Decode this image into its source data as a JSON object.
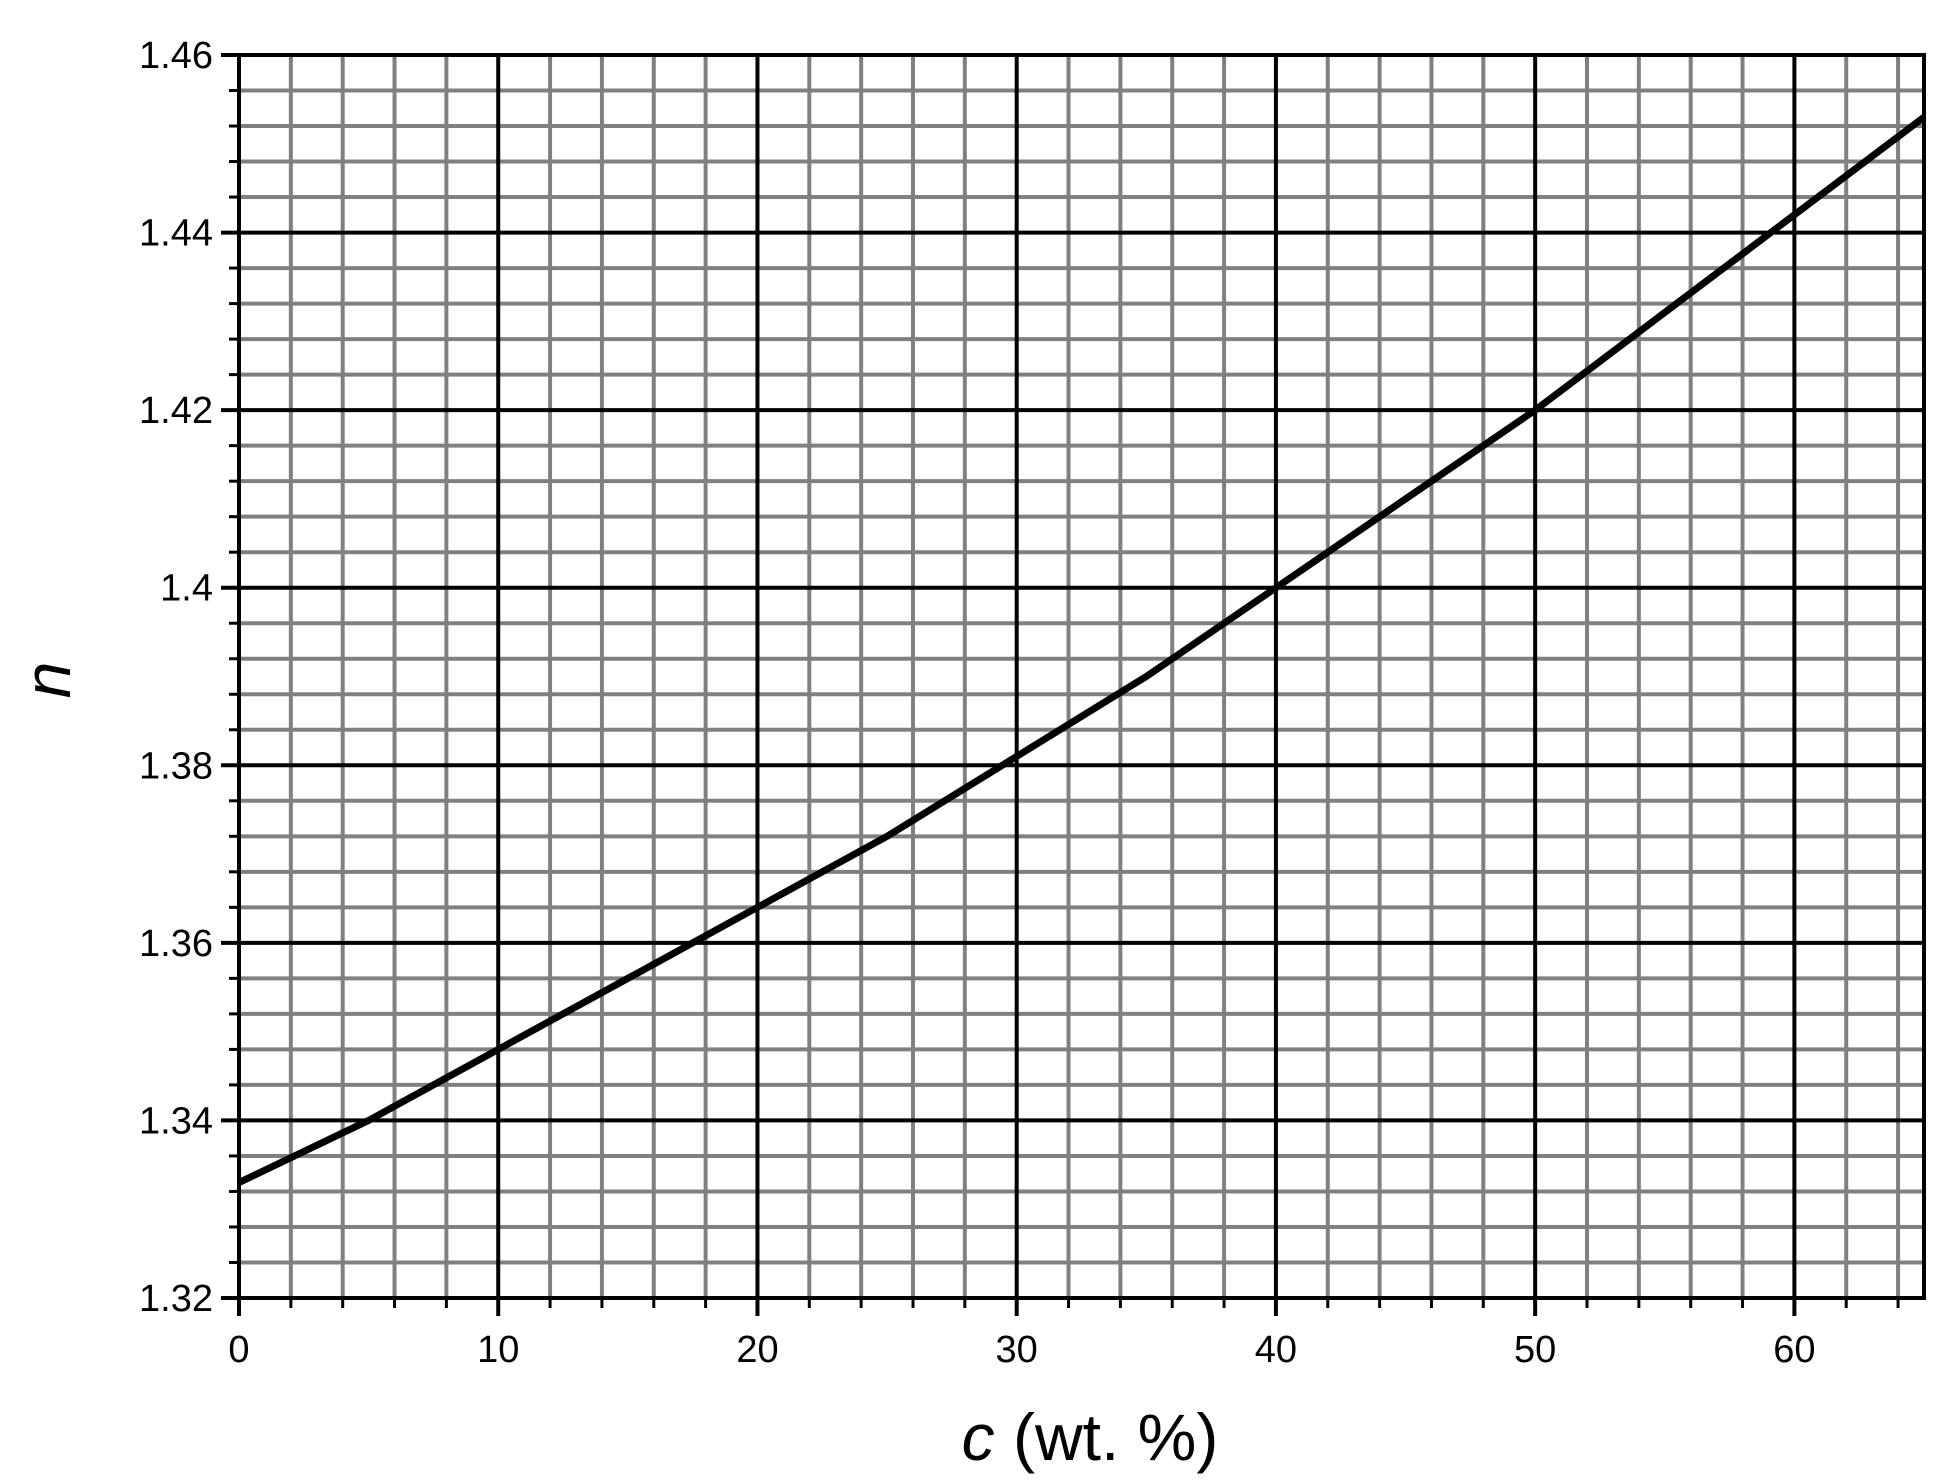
{
  "chart_data": {
    "type": "line",
    "xlabel": {
      "variable": "c",
      "unit": "(wt. %)"
    },
    "ylabel": "n",
    "x": [
      0,
      5,
      10,
      15,
      20,
      25,
      30,
      35,
      40,
      45,
      50,
      55,
      60,
      65
    ],
    "series": [
      {
        "color": "#000000",
        "values": [
          1.333,
          1.34,
          1.348,
          1.356,
          1.364,
          1.372,
          1.381,
          1.39,
          1.4,
          1.41,
          1.42,
          1.431,
          1.442,
          1.453
        ]
      }
    ],
    "xlim": [
      0,
      65
    ],
    "ylim": [
      1.32,
      1.46
    ],
    "xticks": [
      0,
      10,
      20,
      30,
      40,
      50,
      60
    ],
    "yticks": [
      1.32,
      1.34,
      1.36,
      1.38,
      1.4,
      1.42,
      1.44,
      1.46
    ],
    "xminorticks": [
      2,
      4,
      6,
      8,
      12,
      14,
      16,
      18,
      22,
      24,
      26,
      28,
      32,
      34,
      36,
      38,
      42,
      44,
      46,
      48,
      52,
      54,
      56,
      58,
      62,
      64
    ],
    "yminorticks": [
      1.324,
      1.328,
      1.332,
      1.336,
      1.344,
      1.348,
      1.352,
      1.356,
      1.364,
      1.368,
      1.372,
      1.376,
      1.384,
      1.388,
      1.392,
      1.396,
      1.404,
      1.408,
      1.412,
      1.416,
      1.424,
      1.428,
      1.432,
      1.436,
      1.444,
      1.448,
      1.452,
      1.456
    ],
    "grid": true,
    "major_grid_color": "#000000",
    "minor_grid_color": "#808080"
  }
}
